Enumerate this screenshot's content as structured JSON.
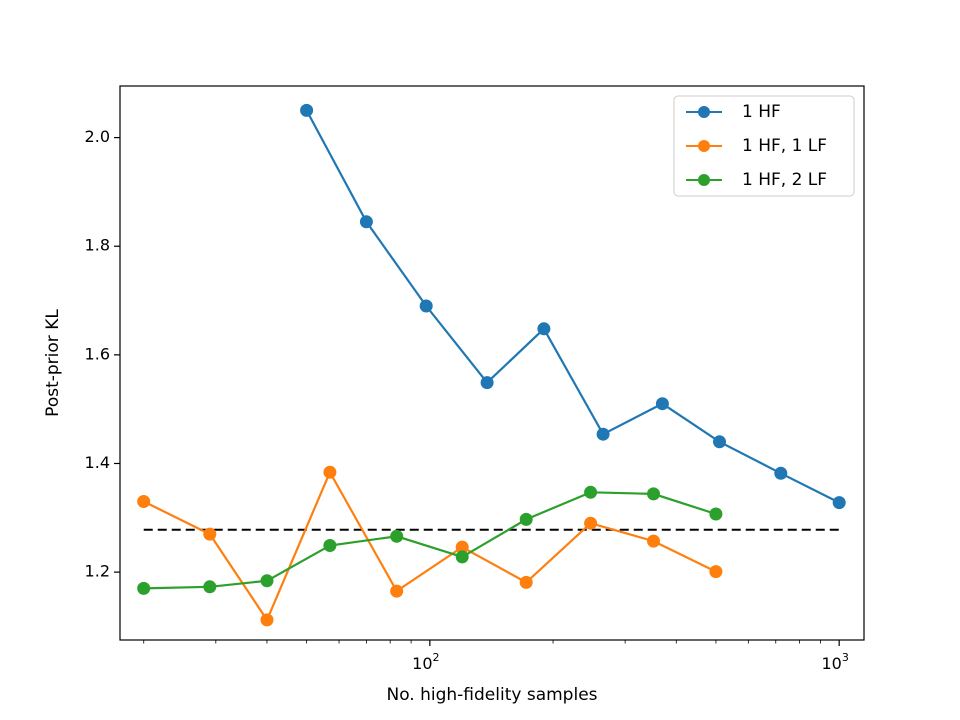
{
  "chart_data": {
    "type": "line",
    "title": "",
    "xlabel": "No. high-fidelity samples",
    "ylabel": "Post-prior KL",
    "xscale": "log",
    "xlim": [
      17.5,
      1150
    ],
    "ylim": [
      1.075,
      2.095
    ],
    "x_ticks": [
      {
        "value": 100,
        "base": "10",
        "exp": "2"
      },
      {
        "value": 1000,
        "base": "10",
        "exp": "3"
      }
    ],
    "y_ticks": [
      {
        "value": 1.2,
        "label": "1.2"
      },
      {
        "value": 1.4,
        "label": "1.4"
      },
      {
        "value": 1.6,
        "label": "1.6"
      },
      {
        "value": 1.8,
        "label": "1.8"
      },
      {
        "value": 2.0,
        "label": "2.0"
      }
    ],
    "grid": false,
    "legend_position": "top-right",
    "reference_line": {
      "y": 1.278,
      "x_range": [
        20,
        1000
      ],
      "style": "dashed",
      "color": "#000000"
    },
    "series": [
      {
        "name": "1 HF",
        "color": "#1f77b4",
        "x": [
          50,
          70,
          98,
          138,
          190,
          265,
          370,
          510,
          720,
          1000
        ],
        "y": [
          2.05,
          1.845,
          1.69,
          1.549,
          1.648,
          1.454,
          1.51,
          1.44,
          1.382,
          1.328
        ]
      },
      {
        "name": "1 HF, 1 LF",
        "color": "#ff7f0e",
        "x": [
          20,
          29,
          40,
          57,
          83,
          120,
          172,
          247,
          352,
          500
        ],
        "y": [
          1.33,
          1.27,
          1.112,
          1.384,
          1.165,
          1.246,
          1.181,
          1.29,
          1.257,
          1.201
        ]
      },
      {
        "name": "1 HF, 2 LF",
        "color": "#2ca02c",
        "x": [
          20,
          29,
          40,
          57,
          83,
          120,
          172,
          247,
          352,
          500
        ],
        "y": [
          1.17,
          1.173,
          1.184,
          1.249,
          1.266,
          1.228,
          1.297,
          1.347,
          1.344,
          1.307
        ]
      }
    ]
  }
}
